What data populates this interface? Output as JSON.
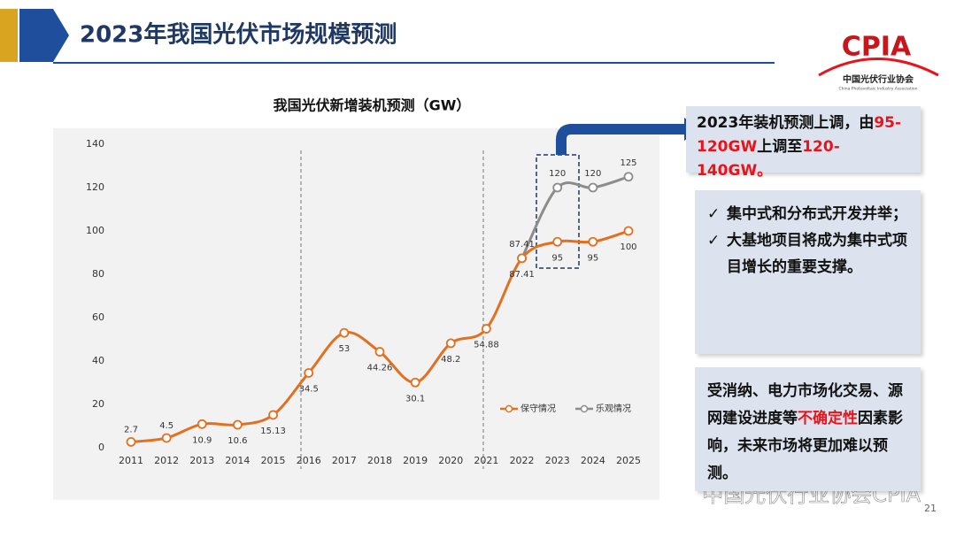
{
  "header": {
    "title": "2023年我国光伏市场规模预测"
  },
  "logo": {
    "name": "CPIA",
    "org": "中国光伏行业协会",
    "org_en": "China Photovoltaic Industry Association"
  },
  "chart_data": {
    "type": "line",
    "title": "我国光伏新增装机预测（GW）",
    "categories": [
      "2011",
      "2012",
      "2013",
      "2014",
      "2015",
      "2016",
      "2017",
      "2018",
      "2019",
      "2020",
      "2021",
      "2022",
      "2023",
      "2024",
      "2025"
    ],
    "series": [
      {
        "name": "保守情况",
        "color": "#e2701f",
        "values": [
          2.7,
          4.5,
          10.9,
          10.6,
          15.13,
          34.5,
          53,
          44.26,
          30.1,
          48.2,
          54.88,
          87.41,
          95,
          95,
          100
        ]
      },
      {
        "name": "乐观情况",
        "color": "#8c8c8c",
        "values": [
          null,
          null,
          null,
          null,
          null,
          null,
          null,
          null,
          null,
          null,
          null,
          87.41,
          120,
          120,
          125
        ]
      }
    ],
    "ylim": [
      0,
      140
    ],
    "yticks": [
      0,
      20,
      40,
      60,
      80,
      100,
      120,
      140
    ],
    "grid": false,
    "legend": "bottom-right"
  },
  "callouts": [
    {
      "parts": [
        "2023年装机预测上调，由",
        "95-120GW",
        "上调至",
        "120-140GW。"
      ]
    },
    {
      "bullet": "✓",
      "items": [
        "集中式和分布式开发并举；",
        "大基地项目将成为集中式项目增长的重要支撑。"
      ]
    },
    {
      "parts": [
        "受消纳、电力市场化交易、源网建设进度等",
        "不确定性",
        "因素影响，未来市场将更加难以预测。"
      ]
    }
  ],
  "watermark": "中国光伏行业协会CPIA",
  "page_number": "21"
}
